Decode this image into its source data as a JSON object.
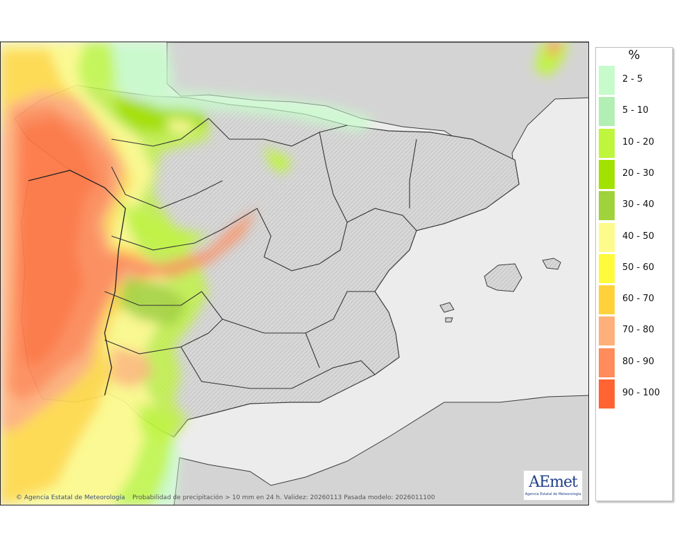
{
  "map": {
    "credit": "Agencia Estatal de Meteorología",
    "caption": "Probabilidad de precipitación > 10 mm en 24 h. Validez: 20260113 Pasada modelo: 2026011100",
    "logo": {
      "text": "AEmet",
      "subtitle": "Agencia Estatal de Meteorología"
    },
    "colors": {
      "sea": "#ececec",
      "land": "#d6d6d6",
      "outline": "#3a3a3a"
    }
  },
  "legend": {
    "title": "%",
    "items": [
      {
        "label": "2 - 5",
        "color": "#c8fbcb"
      },
      {
        "label": "5 - 10",
        "color": "#b3eeb4"
      },
      {
        "label": "10 - 20",
        "color": "#bff53c"
      },
      {
        "label": "20 - 30",
        "color": "#a3e100"
      },
      {
        "label": "30 - 40",
        "color": "#a0d23c"
      },
      {
        "label": "40 - 50",
        "color": "#fdfb8c"
      },
      {
        "label": "50 - 60",
        "color": "#fdfb3c"
      },
      {
        "label": "60 - 70",
        "color": "#ffd23c"
      },
      {
        "label": "70 - 80",
        "color": "#ffb07a"
      },
      {
        "label": "80 - 90",
        "color": "#ff8c5a"
      },
      {
        "label": "90 - 100",
        "color": "#ff6432"
      }
    ]
  }
}
